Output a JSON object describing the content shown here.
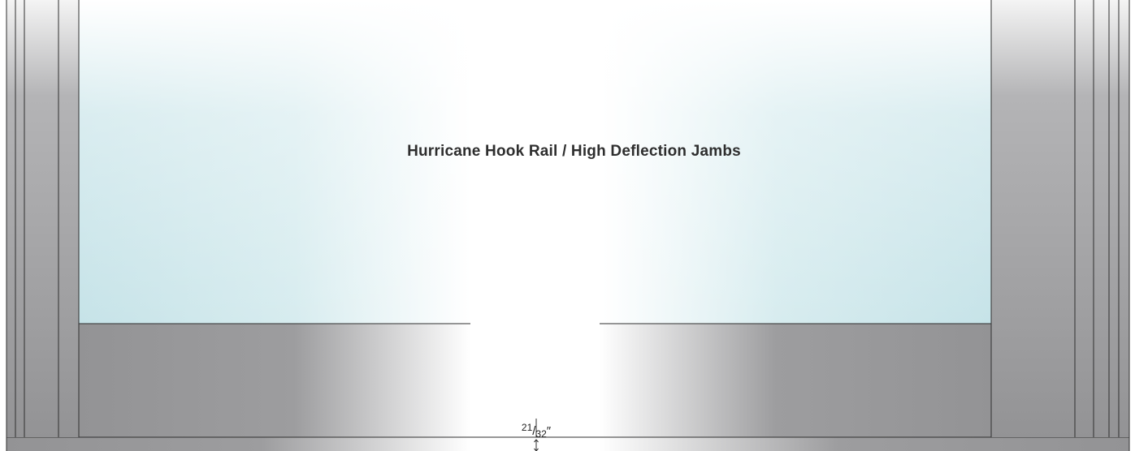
{
  "title": "Hurricane Hook Rail / High Deflection Jambs",
  "dimension": {
    "numerator": "21",
    "slash": "/",
    "denominator": "32",
    "unit": "″"
  },
  "colors": {
    "glass": "#c6e3e8",
    "frame": "#939395",
    "frame_light": "#cfcfd0",
    "line": "#2f2f2f",
    "title": "#2e2e2e"
  },
  "icons": [
    "double-arrow-icon"
  ]
}
